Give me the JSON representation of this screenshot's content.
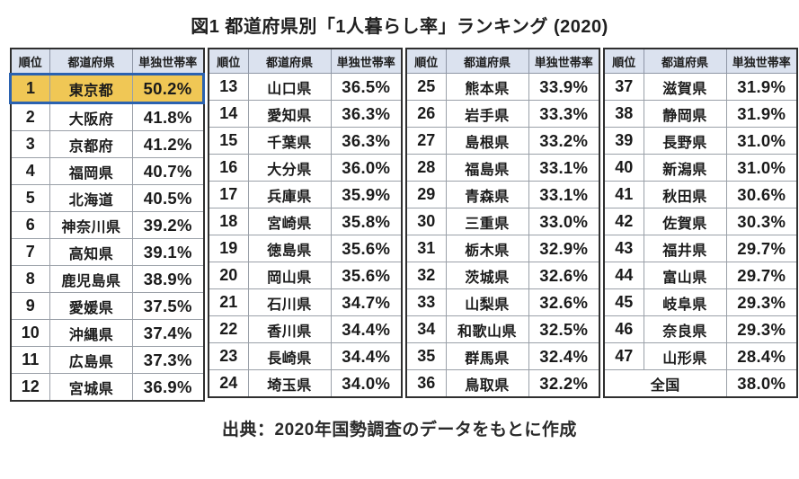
{
  "chart_data": {
    "type": "table",
    "title": "図1 都道府県別「1人暮らし率」ランキング (2020)",
    "caption": "出典：2020年国勢調査のデータをもとに作成",
    "columns": [
      "順位",
      "都道府県",
      "単独世帯率"
    ],
    "value_unit": "%",
    "highlighted_row": {
      "rank": "1",
      "prefecture": "東京都",
      "rate": "50.2%"
    },
    "national_row": {
      "label": "全国",
      "rate": "38.0%"
    },
    "groups": [
      [
        [
          "1",
          "東京都",
          "50.2%"
        ],
        [
          "2",
          "大阪府",
          "41.8%"
        ],
        [
          "3",
          "京都府",
          "41.2%"
        ],
        [
          "4",
          "福岡県",
          "40.7%"
        ],
        [
          "5",
          "北海道",
          "40.5%"
        ],
        [
          "6",
          "神奈川県",
          "39.2%"
        ],
        [
          "7",
          "高知県",
          "39.1%"
        ],
        [
          "8",
          "鹿児島県",
          "38.9%"
        ],
        [
          "9",
          "愛媛県",
          "37.5%"
        ],
        [
          "10",
          "沖縄県",
          "37.4%"
        ],
        [
          "11",
          "広島県",
          "37.3%"
        ],
        [
          "12",
          "宮城県",
          "36.9%"
        ]
      ],
      [
        [
          "13",
          "山口県",
          "36.5%"
        ],
        [
          "14",
          "愛知県",
          "36.3%"
        ],
        [
          "15",
          "千葉県",
          "36.3%"
        ],
        [
          "16",
          "大分県",
          "36.0%"
        ],
        [
          "17",
          "兵庫県",
          "35.9%"
        ],
        [
          "18",
          "宮崎県",
          "35.8%"
        ],
        [
          "19",
          "徳島県",
          "35.6%"
        ],
        [
          "20",
          "岡山県",
          "35.6%"
        ],
        [
          "21",
          "石川県",
          "34.7%"
        ],
        [
          "22",
          "香川県",
          "34.4%"
        ],
        [
          "23",
          "長崎県",
          "34.4%"
        ],
        [
          "24",
          "埼玉県",
          "34.0%"
        ]
      ],
      [
        [
          "25",
          "熊本県",
          "33.9%"
        ],
        [
          "26",
          "岩手県",
          "33.3%"
        ],
        [
          "27",
          "島根県",
          "33.2%"
        ],
        [
          "28",
          "福島県",
          "33.1%"
        ],
        [
          "29",
          "青森県",
          "33.1%"
        ],
        [
          "30",
          "三重県",
          "33.0%"
        ],
        [
          "31",
          "栃木県",
          "32.9%"
        ],
        [
          "32",
          "茨城県",
          "32.6%"
        ],
        [
          "33",
          "山梨県",
          "32.6%"
        ],
        [
          "34",
          "和歌山県",
          "32.5%"
        ],
        [
          "35",
          "群馬県",
          "32.4%"
        ],
        [
          "36",
          "鳥取県",
          "32.2%"
        ]
      ],
      [
        [
          "37",
          "滋賀県",
          "31.9%"
        ],
        [
          "38",
          "静岡県",
          "31.9%"
        ],
        [
          "39",
          "長野県",
          "31.0%"
        ],
        [
          "40",
          "新潟県",
          "31.0%"
        ],
        [
          "41",
          "秋田県",
          "30.6%"
        ],
        [
          "42",
          "佐賀県",
          "30.3%"
        ],
        [
          "43",
          "福井県",
          "29.7%"
        ],
        [
          "44",
          "富山県",
          "29.7%"
        ],
        [
          "45",
          "岐阜県",
          "29.3%"
        ],
        [
          "46",
          "奈良県",
          "29.3%"
        ],
        [
          "47",
          "山形県",
          "28.4%"
        ],
        [
          "",
          "全国",
          "38.0%"
        ]
      ]
    ],
    "colors": {
      "header_bg": "#dbe2ef",
      "highlight_bg": "#f0c755",
      "highlight_border": "#2b62b0",
      "outer_border": "#2f2f2f",
      "grid_line": "#9aa0a8"
    }
  }
}
